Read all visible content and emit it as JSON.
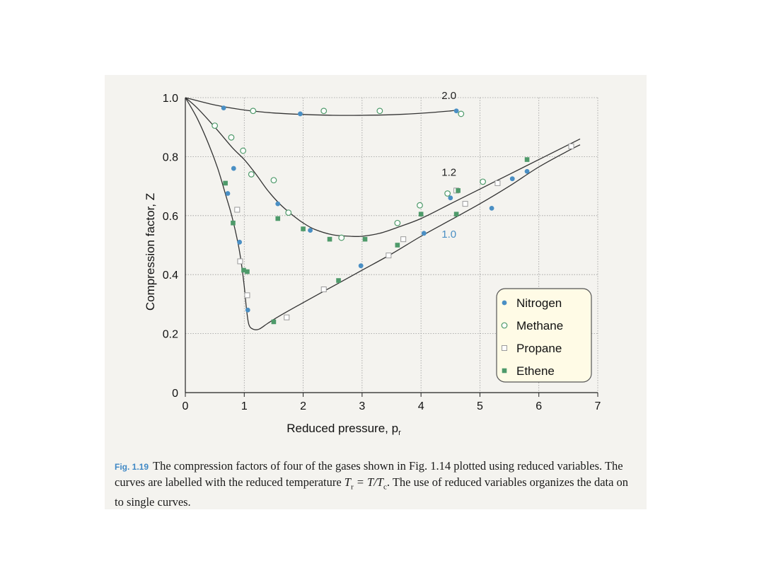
{
  "chart_data": {
    "type": "scatter",
    "title": "",
    "xlabel": "Reduced pressure, p",
    "xlabel_sub": "r",
    "ylabel": "Compression factor, Z",
    "xlim": [
      0,
      7
    ],
    "ylim": [
      0,
      1.0
    ],
    "x_ticks": [
      0,
      1,
      2,
      3,
      4,
      5,
      6,
      7
    ],
    "x_tick_labels": [
      "0",
      "1",
      "2",
      "3",
      "4",
      "5",
      "6",
      "7"
    ],
    "y_ticks": [
      0,
      0.2,
      0.4,
      0.6,
      0.8,
      1.0
    ],
    "y_tick_labels": [
      "0",
      "0.2",
      "0.4",
      "0.6",
      "0.8",
      "1.0"
    ],
    "grid": true,
    "legend_position": "bottom-right",
    "curves": [
      {
        "label": "2.0",
        "label_color": "#222222",
        "points": [
          [
            0,
            1.0
          ],
          [
            0.5,
            0.975
          ],
          [
            1,
            0.958
          ],
          [
            1.5,
            0.948
          ],
          [
            2,
            0.943
          ],
          [
            2.5,
            0.94
          ],
          [
            3,
            0.94
          ],
          [
            3.5,
            0.942
          ],
          [
            4,
            0.947
          ],
          [
            4.5,
            0.955
          ],
          [
            4.6,
            0.958
          ]
        ]
      },
      {
        "label": "1.2",
        "label_color": "#222222",
        "points": [
          [
            0,
            1.0
          ],
          [
            0.2,
            0.965
          ],
          [
            0.5,
            0.9
          ],
          [
            0.8,
            0.83
          ],
          [
            1.0,
            0.79
          ],
          [
            1.2,
            0.74
          ],
          [
            1.4,
            0.685
          ],
          [
            1.6,
            0.64
          ],
          [
            1.8,
            0.605
          ],
          [
            2.0,
            0.575
          ],
          [
            2.2,
            0.553
          ],
          [
            2.5,
            0.535
          ],
          [
            2.8,
            0.53
          ],
          [
            3.0,
            0.53
          ],
          [
            3.3,
            0.54
          ],
          [
            3.6,
            0.56
          ],
          [
            4.0,
            0.59
          ],
          [
            4.5,
            0.64
          ],
          [
            5.0,
            0.69
          ],
          [
            5.5,
            0.74
          ],
          [
            6.0,
            0.79
          ],
          [
            6.5,
            0.84
          ],
          [
            6.7,
            0.86
          ]
        ]
      },
      {
        "label": "1.0",
        "label_color": "#4a8fc4",
        "points": [
          [
            0,
            1.0
          ],
          [
            0.2,
            0.93
          ],
          [
            0.4,
            0.84
          ],
          [
            0.55,
            0.76
          ],
          [
            0.7,
            0.66
          ],
          [
            0.8,
            0.59
          ],
          [
            0.9,
            0.5
          ],
          [
            0.95,
            0.44
          ],
          [
            1.0,
            0.36
          ],
          [
            1.04,
            0.28
          ],
          [
            1.08,
            0.23
          ],
          [
            1.15,
            0.215
          ],
          [
            1.25,
            0.215
          ],
          [
            1.4,
            0.235
          ],
          [
            1.6,
            0.26
          ],
          [
            2.0,
            0.305
          ],
          [
            2.5,
            0.36
          ],
          [
            3.0,
            0.415
          ],
          [
            3.5,
            0.47
          ],
          [
            4.0,
            0.53
          ],
          [
            4.5,
            0.585
          ],
          [
            5.0,
            0.64
          ],
          [
            5.5,
            0.7
          ],
          [
            6.0,
            0.765
          ],
          [
            6.5,
            0.82
          ],
          [
            6.7,
            0.84
          ]
        ]
      }
    ],
    "series": [
      {
        "name": "Nitrogen",
        "marker": "filled-circle",
        "color": "#4a8fc4",
        "x": [
          0.65,
          0.72,
          0.82,
          0.92,
          1.06,
          1.57,
          1.95,
          2.12,
          2.98,
          4.05,
          4.5,
          4.6,
          5.2,
          5.55,
          5.8
        ],
        "y": [
          0.965,
          0.675,
          0.76,
          0.51,
          0.28,
          0.64,
          0.945,
          0.55,
          0.43,
          0.54,
          0.66,
          0.955,
          0.625,
          0.725,
          0.75
        ]
      },
      {
        "name": "Methane",
        "marker": "open-circle",
        "color": "#4e9a6a",
        "x": [
          0.5,
          0.78,
          0.98,
          1.12,
          1.15,
          1.5,
          1.75,
          2.35,
          2.65,
          3.3,
          3.6,
          3.98,
          4.45,
          4.68,
          5.05
        ],
        "y": [
          0.905,
          0.865,
          0.82,
          0.74,
          0.955,
          0.72,
          0.61,
          0.955,
          0.525,
          0.955,
          0.575,
          0.635,
          0.675,
          0.945,
          0.715
        ]
      },
      {
        "name": "Propane",
        "marker": "open-square",
        "color": "#9a9a9a",
        "x": [
          0.88,
          0.93,
          1.05,
          1.72,
          2.35,
          3.45,
          3.7,
          4.6,
          4.75,
          5.3,
          6.55
        ],
        "y": [
          0.62,
          0.445,
          0.33,
          0.255,
          0.35,
          0.465,
          0.52,
          0.685,
          0.64,
          0.71,
          0.835
        ]
      },
      {
        "name": "Ethene",
        "marker": "filled-square",
        "color": "#4e9a6a",
        "x": [
          0.68,
          0.81,
          0.99,
          1.05,
          1.5,
          1.57,
          2.0,
          2.45,
          2.6,
          3.05,
          3.6,
          4.0,
          4.6,
          4.63,
          5.8
        ],
        "y": [
          0.71,
          0.575,
          0.415,
          0.41,
          0.24,
          0.59,
          0.555,
          0.52,
          0.38,
          0.52,
          0.5,
          0.605,
          0.605,
          0.685,
          0.79
        ]
      }
    ]
  },
  "caption": {
    "tag": "Fig. 1.19",
    "text_part1": "The compression factors of four of the gases shown in Fig. 1.14 plotted using reduced variables. The curves are labelled with the reduced temperature ",
    "tr_symbol": "T",
    "tr_sub": "r",
    "eq_mid": " = T/T",
    "tc_sub": "c",
    "text_part2": ". The use of reduced variables organizes the data on to single curves."
  }
}
